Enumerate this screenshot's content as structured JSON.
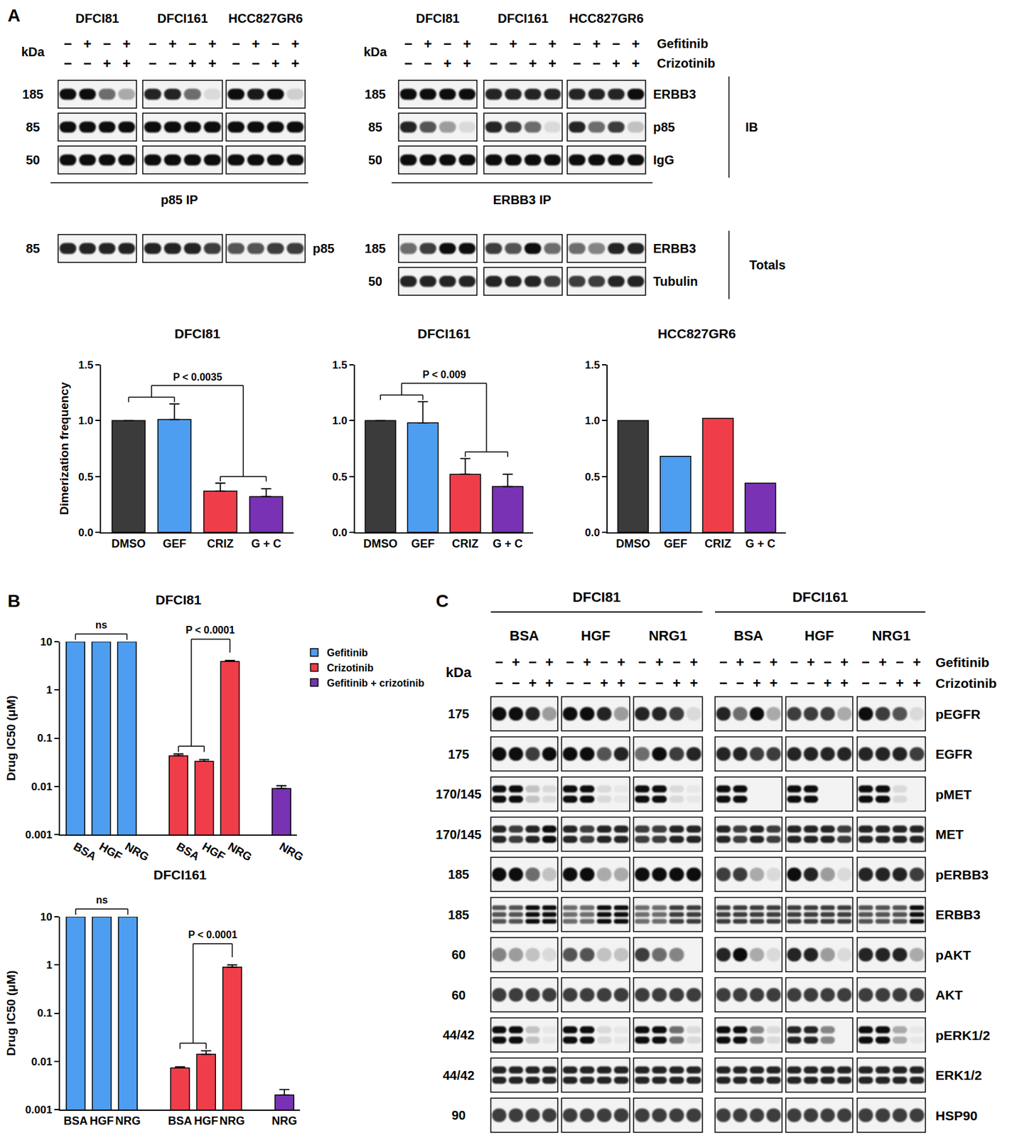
{
  "panel_labels": [
    "A",
    "B",
    "C"
  ],
  "blots_A": [
    {
      "title": "p85 IP",
      "kda_header": "kDa",
      "cell_lines": [
        "DFCI81",
        "DFCI161",
        "HCC827GR6"
      ],
      "treatments": [
        {
          "signs": [
            "−",
            "+",
            "−",
            "+"
          ]
        },
        {
          "signs": [
            "−",
            "−",
            "+",
            "+"
          ]
        }
      ],
      "rows": [
        {
          "kda": "185",
          "bands": [
            [
              1,
              1,
              0.6,
              0.3
            ],
            [
              0.9,
              0.9,
              0.6,
              0.1
            ],
            [
              1,
              0.95,
              1,
              0.15
            ]
          ]
        },
        {
          "kda": "85",
          "bands": [
            [
              1,
              1,
              1,
              1
            ],
            [
              1,
              1,
              1,
              1
            ],
            [
              1,
              1,
              1,
              1
            ]
          ]
        },
        {
          "kda": "50",
          "bands": [
            [
              1,
              1,
              1,
              1
            ],
            [
              1,
              1,
              1,
              1
            ],
            [
              1,
              1,
              1,
              1
            ]
          ]
        }
      ],
      "totals": [
        {
          "kda": "85",
          "label": "p85",
          "bands": [
            [
              0.9,
              0.9,
              0.9,
              0.9
            ],
            [
              0.9,
              0.9,
              0.9,
              0.8
            ],
            [
              0.7,
              0.7,
              0.8,
              0.8
            ]
          ]
        }
      ]
    },
    {
      "title": "ERBB3 IP",
      "kda_header": "kDa",
      "cell_lines": [
        "DFCI81",
        "DFCI161",
        "HCC827GR6"
      ],
      "treatments": [
        {
          "name": "Gefitinib",
          "signs": [
            "−",
            "+",
            "−",
            "+"
          ]
        },
        {
          "name": "Crizotinib",
          "signs": [
            "−",
            "−",
            "+",
            "+"
          ]
        }
      ],
      "group_label": "IB",
      "rows": [
        {
          "kda": "185",
          "label": "ERBB3",
          "bands": [
            [
              1,
              1,
              1,
              1
            ],
            [
              0.9,
              0.9,
              0.9,
              0.9
            ],
            [
              0.9,
              0.9,
              0.9,
              1
            ]
          ]
        },
        {
          "kda": "85",
          "label": "p85",
          "bands": [
            [
              0.9,
              0.7,
              0.4,
              0.1
            ],
            [
              0.9,
              0.8,
              0.6,
              0.1
            ],
            [
              0.9,
              0.6,
              0.8,
              0.2
            ]
          ]
        },
        {
          "kda": "50",
          "label": "IgG",
          "bands": [
            [
              1,
              1,
              1,
              1
            ],
            [
              1,
              1,
              1,
              1
            ],
            [
              1,
              1,
              1,
              1
            ]
          ]
        }
      ],
      "totals_label": "Totals",
      "totals": [
        {
          "kda": "185",
          "label": "ERBB3",
          "bands": [
            [
              0.6,
              0.8,
              1,
              1
            ],
            [
              0.8,
              0.7,
              1,
              0.6
            ],
            [
              0.6,
              0.5,
              0.9,
              0.9
            ]
          ]
        },
        {
          "kda": "50",
          "label": "Tubulin",
          "bands": [
            [
              0.9,
              0.9,
              0.9,
              0.9
            ],
            [
              0.9,
              0.9,
              0.9,
              0.8
            ],
            [
              0.8,
              0.8,
              0.9,
              0.9
            ]
          ]
        }
      ]
    }
  ],
  "chart_data": [
    {
      "type": "bar",
      "title": "DFCI81",
      "y_label": "Dimerization frequency",
      "categories": [
        "DMSO",
        "GEF",
        "CRIZ",
        "G + C"
      ],
      "values": [
        1.0,
        1.01,
        0.37,
        0.32
      ],
      "errors": [
        null,
        0.14,
        0.07,
        0.07
      ],
      "colors": [
        "#3b3b3b",
        "#4d9ef0",
        "#ef3e4a",
        "#7a32b4"
      ],
      "ylim": [
        0,
        1.5
      ],
      "yticks": [
        {
          "value": 0,
          "label": "0.0"
        },
        {
          "value": 0.5,
          "label": "0.5"
        },
        {
          "value": 1,
          "label": "1.0"
        },
        {
          "value": 1.5,
          "label": "1.5"
        }
      ],
      "grid": false,
      "comparisons": [
        {
          "left": [
            "DMSO",
            "GEF"
          ],
          "right": [
            "CRIZ",
            "G + C"
          ],
          "label": "P < 0.0035"
        }
      ]
    },
    {
      "type": "bar",
      "title": "DFCI161",
      "categories": [
        "DMSO",
        "GEF",
        "CRIZ",
        "G + C"
      ],
      "values": [
        1.0,
        0.98,
        0.52,
        0.41
      ],
      "errors": [
        null,
        0.19,
        0.14,
        0.11
      ],
      "colors": [
        "#3b3b3b",
        "#4d9ef0",
        "#ef3e4a",
        "#7a32b4"
      ],
      "ylim": [
        0,
        1.5
      ],
      "yticks": [
        {
          "value": 0,
          "label": "0.0"
        },
        {
          "value": 0.5,
          "label": "0.5"
        },
        {
          "value": 1,
          "label": "1.0"
        },
        {
          "value": 1.5,
          "label": "1.5"
        }
      ],
      "grid": false,
      "comparisons": [
        {
          "left": [
            "DMSO",
            "GEF"
          ],
          "right": [
            "CRIZ",
            "G + C"
          ],
          "label": "P < 0.009"
        }
      ]
    },
    {
      "type": "bar",
      "title": "HCC827GR6",
      "categories": [
        "DMSO",
        "GEF",
        "CRIZ",
        "G + C"
      ],
      "values": [
        1.0,
        0.68,
        1.02,
        0.44
      ],
      "colors": [
        "#3b3b3b",
        "#4d9ef0",
        "#ef3e4a",
        "#7a32b4"
      ],
      "ylim": [
        0,
        1.5
      ],
      "yticks": [
        {
          "value": 0,
          "label": "0.0"
        },
        {
          "value": 0.5,
          "label": "0.5"
        },
        {
          "value": 1,
          "label": "1.0"
        },
        {
          "value": 1.5,
          "label": "1.5"
        }
      ],
      "grid": false
    },
    {
      "type": "bar",
      "title": "DFCI81",
      "y_label": "Drug IC50 (μM)",
      "log": "y",
      "ylim": [
        0.001,
        10
      ],
      "yticks": [
        0.001,
        0.01,
        0.1,
        1,
        10
      ],
      "grid": false,
      "legend": "upper right",
      "series": [
        {
          "name": "Gefitinib",
          "color": "#4d9ef0",
          "categories": [
            "BSA",
            "HGF",
            "NRG"
          ],
          "values": [
            10,
            10,
            10
          ],
          "comparisons": [
            {
              "left": [
                "BSA",
                "HGF",
                "NRG"
              ],
              "label": "ns"
            }
          ]
        },
        {
          "name": "Crizotinib",
          "color": "#ef3e4a",
          "categories": [
            "BSA",
            "HGF",
            "NRG"
          ],
          "values": [
            0.043,
            0.033,
            3.9
          ],
          "errors": [
            0.004,
            0.003,
            0.2
          ],
          "comparisons": [
            {
              "left": [
                "BSA",
                "HGF"
              ],
              "right": [
                "NRG"
              ],
              "label": "P < 0.0001"
            }
          ]
        },
        {
          "name": "Gefitinib + crizotinib",
          "color": "#7a32b4",
          "categories": [
            "NRG"
          ],
          "values": [
            0.009
          ],
          "errors": [
            0.0013
          ]
        }
      ]
    },
    {
      "type": "bar",
      "title": "DFCI161",
      "y_label": "Drug IC50 (μM)",
      "log": "y",
      "ylim": [
        0.001,
        10
      ],
      "yticks": [
        0.001,
        0.01,
        0.1,
        1,
        10
      ],
      "grid": false,
      "series": [
        {
          "color": "#4d9ef0",
          "categories": [
            "BSA",
            "HGF",
            "NRG"
          ],
          "values": [
            10,
            10,
            10
          ],
          "comparisons": [
            {
              "left": [
                "BSA",
                "HGF",
                "NRG"
              ],
              "label": "ns"
            }
          ]
        },
        {
          "color": "#ef3e4a",
          "categories": [
            "BSA",
            "HGF",
            "NRG"
          ],
          "values": [
            0.0073,
            0.014,
            0.9
          ],
          "errors": [
            0.0004,
            0.0025,
            0.1
          ],
          "comparisons": [
            {
              "left": [
                "BSA",
                "HGF"
              ],
              "right": [
                "NRG"
              ],
              "label": "P < 0.0001"
            }
          ]
        },
        {
          "color": "#7a32b4",
          "categories": [
            "NRG"
          ],
          "values": [
            0.002
          ],
          "errors": [
            0.0006
          ]
        }
      ]
    }
  ],
  "blot_C": {
    "kda_header": "kDa",
    "cell_lines": [
      {
        "name": "DFCI81",
        "conditions": [
          "BSA",
          "HGF",
          "NRG1"
        ]
      },
      {
        "name": "DFCI161",
        "conditions": [
          "BSA",
          "HGF",
          "NRG1"
        ]
      }
    ],
    "treatments": [
      {
        "name": "Gefitinib",
        "signs": [
          "−",
          "+",
          "−",
          "+"
        ]
      },
      {
        "name": "Crizotinib",
        "signs": [
          "−",
          "−",
          "+",
          "+"
        ]
      }
    ],
    "rows": [
      {
        "kda": "175",
        "label": "pEGFR",
        "bands": [
          [
            1,
            1,
            0.9,
            0.4
          ],
          [
            1,
            1,
            0.9,
            0.4
          ],
          [
            0.9,
            0.9,
            0.8,
            0.1
          ],
          [
            0.9,
            0.6,
            1,
            0.3
          ],
          [
            0.8,
            0.8,
            0.8,
            0.3
          ],
          [
            1,
            0.8,
            0.7,
            0.1
          ]
        ]
      },
      {
        "kda": "175",
        "label": "EGFR",
        "bands": [
          [
            1,
            1,
            0.8,
            1
          ],
          [
            1,
            1,
            0.7,
            0.9
          ],
          [
            0.6,
            1,
            0.8,
            0.9
          ],
          [
            0.9,
            0.9,
            0.8,
            0.8
          ],
          [
            0.9,
            0.9,
            0.9,
            0.9
          ],
          [
            0.9,
            0.9,
            0.9,
            0.8
          ]
        ]
      },
      {
        "kda": "170/145",
        "label": "pMET",
        "band_count": 2,
        "bands": [
          [
            1,
            1,
            0.2,
            0.1
          ],
          [
            1,
            1,
            0.1,
            0.05
          ],
          [
            1,
            1,
            0.1,
            0.05
          ],
          [
            1,
            1,
            0,
            0
          ],
          [
            1,
            1,
            0,
            0
          ],
          [
            1,
            1,
            0.1,
            0
          ]
        ]
      },
      {
        "kda": "170/145",
        "label": "MET",
        "band_count": 2,
        "bands": [
          [
            0.9,
            0.8,
            0.9,
            1
          ],
          [
            0.9,
            0.8,
            0.9,
            0.9
          ],
          [
            0.8,
            0.8,
            0.9,
            0.9
          ],
          [
            0.9,
            0.8,
            0.9,
            0.8
          ],
          [
            0.9,
            0.9,
            0.9,
            0.8
          ],
          [
            0.9,
            0.9,
            0.9,
            0.9
          ]
        ]
      },
      {
        "kda": "185",
        "label": "pERBB3",
        "bands": [
          [
            1,
            1,
            0.6,
            0.2
          ],
          [
            1,
            1,
            0.3,
            0.3
          ],
          [
            1,
            1,
            1,
            1
          ],
          [
            0.8,
            0.8,
            0.3,
            0.1
          ],
          [
            1,
            0.9,
            0.4,
            0.1
          ],
          [
            0.9,
            0.9,
            0.9,
            0.8
          ]
        ]
      },
      {
        "kda": "185",
        "label": "ERBB3",
        "band_count": 3,
        "bands": [
          [
            0.7,
            0.7,
            1,
            1
          ],
          [
            0.6,
            0.6,
            1,
            1
          ],
          [
            0.6,
            0.6,
            0.8,
            0.8
          ],
          [
            0.8,
            0.8,
            0.8,
            0.8
          ],
          [
            0.8,
            0.8,
            0.8,
            0.8
          ],
          [
            0.7,
            0.7,
            0.7,
            1
          ]
        ]
      },
      {
        "kda": "60",
        "label": "pAKT",
        "bands": [
          [
            0.5,
            0.4,
            0.2,
            0.1
          ],
          [
            0.7,
            0.7,
            0.2,
            0.2
          ],
          [
            0.8,
            0.6,
            0.5,
            0
          ],
          [
            0.9,
            1,
            0.3,
            0.1
          ],
          [
            0.9,
            0.9,
            0.4,
            0.1
          ],
          [
            0.9,
            0.9,
            0.9,
            0.3
          ]
        ]
      },
      {
        "kda": "60",
        "label": "AKT",
        "bands": [
          [
            0.8,
            0.8,
            0.8,
            0.8
          ],
          [
            0.8,
            0.8,
            0.8,
            0.8
          ],
          [
            0.8,
            0.8,
            0.8,
            0.8
          ],
          [
            0.8,
            0.8,
            0.8,
            0.8
          ],
          [
            0.8,
            0.8,
            0.8,
            0.8
          ],
          [
            0.8,
            0.8,
            0.8,
            0.8
          ]
        ]
      },
      {
        "kda": "44/42",
        "label": "pERK1/2",
        "band_count": 2,
        "bands": [
          [
            1,
            1,
            0.2,
            0.05
          ],
          [
            1,
            1,
            0.1,
            0.05
          ],
          [
            1,
            1,
            0.6,
            0.1
          ],
          [
            1,
            1,
            0.5,
            0.1
          ],
          [
            0.9,
            0.9,
            0.5,
            0
          ],
          [
            1,
            1,
            0.3,
            0.05
          ]
        ]
      },
      {
        "kda": "44/42",
        "label": "ERK1/2",
        "band_count": 2,
        "bands": [
          [
            0.9,
            0.9,
            0.9,
            0.9
          ],
          [
            0.9,
            0.9,
            0.9,
            0.9
          ],
          [
            0.9,
            0.9,
            0.9,
            0.9
          ],
          [
            0.9,
            0.9,
            0.9,
            0.9
          ],
          [
            0.9,
            0.9,
            0.9,
            0.9
          ],
          [
            0.9,
            0.9,
            0.9,
            0.9
          ]
        ]
      },
      {
        "kda": "90",
        "label": "HSP90",
        "bands": [
          [
            0.8,
            0.8,
            0.8,
            0.8
          ],
          [
            0.8,
            0.8,
            0.8,
            0.8
          ],
          [
            0.8,
            0.8,
            0.8,
            0.8
          ],
          [
            0.8,
            0.8,
            0.8,
            0.8
          ],
          [
            0.8,
            0.8,
            0.8,
            0.8
          ],
          [
            0.8,
            0.8,
            0.8,
            0.8
          ]
        ]
      }
    ]
  }
}
